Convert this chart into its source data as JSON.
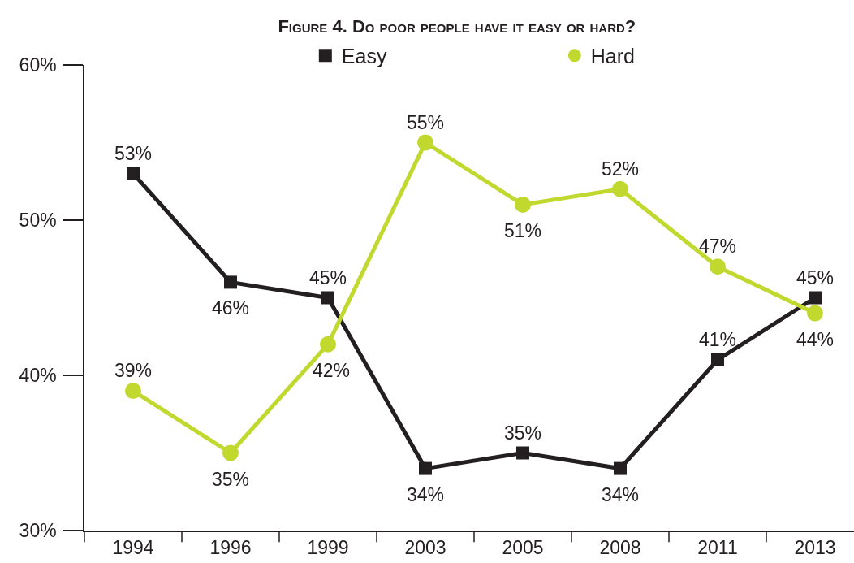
{
  "chart_data": {
    "type": "line",
    "title": "Figure 4. Do poor people have it easy or hard?",
    "categories": [
      "1994",
      "1996",
      "1999",
      "2003",
      "2005",
      "2008",
      "2011",
      "2013"
    ],
    "series": [
      {
        "name": "Easy",
        "color": "#231f20",
        "marker": "square",
        "values": [
          53,
          46,
          45,
          34,
          35,
          34,
          41,
          45
        ],
        "value_labels": [
          "53%",
          "46%",
          "45%",
          "34%",
          "35%",
          "34%",
          "41%",
          "45%"
        ]
      },
      {
        "name": "Hard",
        "color": "#c1d82f",
        "marker": "circle",
        "values": [
          39,
          35,
          42,
          55,
          51,
          52,
          47,
          44
        ],
        "value_labels": [
          "39%",
          "35%",
          "42%",
          "55%",
          "51%",
          "52%",
          "47%",
          "44%"
        ]
      }
    ],
    "ylim": [
      30,
      60
    ],
    "yticks": [
      {
        "value": 30,
        "label": "30%"
      },
      {
        "value": 40,
        "label": "40%"
      },
      {
        "value": 50,
        "label": "50%"
      },
      {
        "value": 60,
        "label": "60%"
      }
    ],
    "legend": "top"
  }
}
